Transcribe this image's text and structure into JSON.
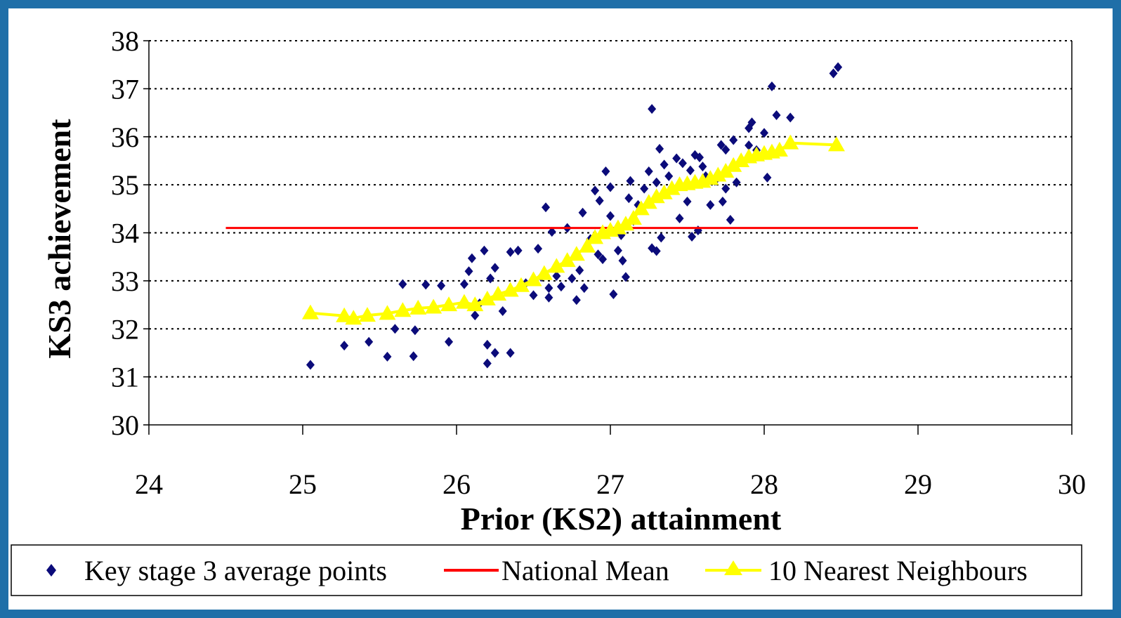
{
  "chart_data": {
    "type": "scatter",
    "xlabel": "Prior (KS2) attainment",
    "ylabel": "KS3 achievement",
    "xlim": [
      24,
      30
    ],
    "ylim": [
      30,
      38
    ],
    "xticks": [
      "24",
      "25",
      "26",
      "27",
      "28",
      "29",
      "30"
    ],
    "yticks": [
      "30",
      "31",
      "32",
      "33",
      "34",
      "35",
      "36",
      "37",
      "38"
    ],
    "grid": "horizontal dotted",
    "legend_position": "bottom",
    "colors": {
      "points": "#0b0b7a",
      "mean": "#ff0000",
      "neighbours": "#ffff00",
      "frame": "#1f6fa8"
    },
    "series": [
      {
        "name": "Key stage 3 average points",
        "kind": "scatter",
        "marker": "diamond",
        "points": [
          [
            25.05,
            31.25
          ],
          [
            25.27,
            31.65
          ],
          [
            25.43,
            31.73
          ],
          [
            25.55,
            31.42
          ],
          [
            25.6,
            32.0
          ],
          [
            25.65,
            32.93
          ],
          [
            25.72,
            31.43
          ],
          [
            25.73,
            31.97
          ],
          [
            25.8,
            32.92
          ],
          [
            25.9,
            32.9
          ],
          [
            25.95,
            31.73
          ],
          [
            26.05,
            32.93
          ],
          [
            26.08,
            33.2
          ],
          [
            26.1,
            33.47
          ],
          [
            26.12,
            32.28
          ],
          [
            26.15,
            32.53
          ],
          [
            26.18,
            33.63
          ],
          [
            26.2,
            31.67
          ],
          [
            26.2,
            31.28
          ],
          [
            26.22,
            33.05
          ],
          [
            26.25,
            33.27
          ],
          [
            26.25,
            31.5
          ],
          [
            26.3,
            32.37
          ],
          [
            26.35,
            31.5
          ],
          [
            26.35,
            33.6
          ],
          [
            26.4,
            33.63
          ],
          [
            26.45,
            32.95
          ],
          [
            26.5,
            32.7
          ],
          [
            26.53,
            33.67
          ],
          [
            26.55,
            33.08
          ],
          [
            26.58,
            34.53
          ],
          [
            26.6,
            32.85
          ],
          [
            26.6,
            32.65
          ],
          [
            26.62,
            34.02
          ],
          [
            26.65,
            33.1
          ],
          [
            26.68,
            32.88
          ],
          [
            26.72,
            34.1
          ],
          [
            26.75,
            33.05
          ],
          [
            26.78,
            32.6
          ],
          [
            26.8,
            33.22
          ],
          [
            26.82,
            34.42
          ],
          [
            26.83,
            32.85
          ],
          [
            26.87,
            33.87
          ],
          [
            26.9,
            34.88
          ],
          [
            26.92,
            33.55
          ],
          [
            26.93,
            34.67
          ],
          [
            26.95,
            33.45
          ],
          [
            26.97,
            35.28
          ],
          [
            27.0,
            34.95
          ],
          [
            27.0,
            34.35
          ],
          [
            27.02,
            32.72
          ],
          [
            27.05,
            33.63
          ],
          [
            27.07,
            33.95
          ],
          [
            27.08,
            33.42
          ],
          [
            27.1,
            33.08
          ],
          [
            27.12,
            34.72
          ],
          [
            27.13,
            35.08
          ],
          [
            27.15,
            34.25
          ],
          [
            27.18,
            34.58
          ],
          [
            27.2,
            34.55
          ],
          [
            27.22,
            34.92
          ],
          [
            27.25,
            35.28
          ],
          [
            27.27,
            36.58
          ],
          [
            27.27,
            33.68
          ],
          [
            27.3,
            33.62
          ],
          [
            27.3,
            35.05
          ],
          [
            27.32,
            35.75
          ],
          [
            27.33,
            33.9
          ],
          [
            27.35,
            35.42
          ],
          [
            27.38,
            35.18
          ],
          [
            27.4,
            34.95
          ],
          [
            27.43,
            35.55
          ],
          [
            27.45,
            34.3
          ],
          [
            27.47,
            35.45
          ],
          [
            27.5,
            34.65
          ],
          [
            27.52,
            35.3
          ],
          [
            27.53,
            33.92
          ],
          [
            27.55,
            35.62
          ],
          [
            27.57,
            34.05
          ],
          [
            27.58,
            35.57
          ],
          [
            27.6,
            35.38
          ],
          [
            27.62,
            35.18
          ],
          [
            27.65,
            34.58
          ],
          [
            27.68,
            35.08
          ],
          [
            27.72,
            35.83
          ],
          [
            27.73,
            34.65
          ],
          [
            27.75,
            35.73
          ],
          [
            27.75,
            34.92
          ],
          [
            27.78,
            34.27
          ],
          [
            27.8,
            35.93
          ],
          [
            27.82,
            35.05
          ],
          [
            27.85,
            35.48
          ],
          [
            27.9,
            35.82
          ],
          [
            27.9,
            36.18
          ],
          [
            27.92,
            36.3
          ],
          [
            27.95,
            35.72
          ],
          [
            28.0,
            36.08
          ],
          [
            28.02,
            35.15
          ],
          [
            28.05,
            37.05
          ],
          [
            28.08,
            36.45
          ],
          [
            28.17,
            36.4
          ],
          [
            28.45,
            37.32
          ],
          [
            28.48,
            37.45
          ]
        ]
      },
      {
        "name": "National Mean",
        "kind": "line",
        "points": [
          [
            24.5,
            34.1
          ],
          [
            29.0,
            34.1
          ]
        ]
      },
      {
        "name": "10 Nearest Neighbours",
        "kind": "line-marker",
        "marker": "triangle",
        "points": [
          [
            25.05,
            32.33
          ],
          [
            25.27,
            32.27
          ],
          [
            25.33,
            32.22
          ],
          [
            25.42,
            32.28
          ],
          [
            25.55,
            32.32
          ],
          [
            25.65,
            32.38
          ],
          [
            25.75,
            32.43
          ],
          [
            25.85,
            32.45
          ],
          [
            25.95,
            32.5
          ],
          [
            26.05,
            32.55
          ],
          [
            26.12,
            32.5
          ],
          [
            26.2,
            32.62
          ],
          [
            26.27,
            32.72
          ],
          [
            26.35,
            32.8
          ],
          [
            26.42,
            32.9
          ],
          [
            26.5,
            33.02
          ],
          [
            26.57,
            33.15
          ],
          [
            26.65,
            33.3
          ],
          [
            26.72,
            33.42
          ],
          [
            26.78,
            33.55
          ],
          [
            26.85,
            33.72
          ],
          [
            26.9,
            33.9
          ],
          [
            26.95,
            34.0
          ],
          [
            27.0,
            34.05
          ],
          [
            27.05,
            34.1
          ],
          [
            27.1,
            34.18
          ],
          [
            27.15,
            34.3
          ],
          [
            27.2,
            34.5
          ],
          [
            27.25,
            34.63
          ],
          [
            27.3,
            34.75
          ],
          [
            27.35,
            34.83
          ],
          [
            27.4,
            34.92
          ],
          [
            27.45,
            35.0
          ],
          [
            27.5,
            35.02
          ],
          [
            27.55,
            35.05
          ],
          [
            27.6,
            35.07
          ],
          [
            27.65,
            35.13
          ],
          [
            27.7,
            35.2
          ],
          [
            27.75,
            35.28
          ],
          [
            27.8,
            35.4
          ],
          [
            27.85,
            35.5
          ],
          [
            27.9,
            35.58
          ],
          [
            27.95,
            35.62
          ],
          [
            28.0,
            35.65
          ],
          [
            28.05,
            35.68
          ],
          [
            28.1,
            35.72
          ],
          [
            28.17,
            35.87
          ],
          [
            28.47,
            35.83
          ]
        ]
      }
    ]
  }
}
